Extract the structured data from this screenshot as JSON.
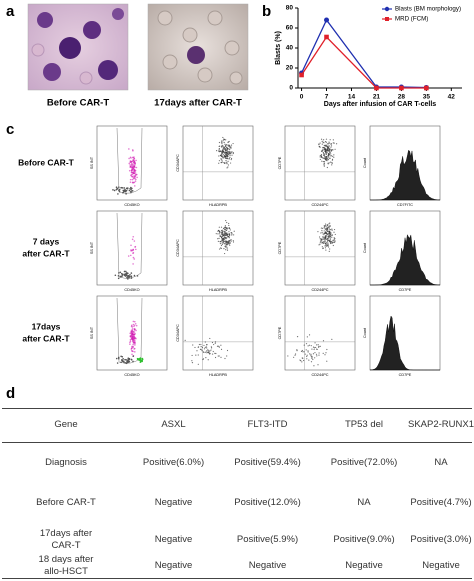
{
  "panel_a": {
    "letter": "a",
    "captions": [
      "Before CAR-T",
      "17days after CAR-T"
    ]
  },
  "chart_data": {
    "type": "line",
    "letter": "b",
    "xlabel": "Days after infusion of CAR T-cells",
    "ylabel": "Blasts (%)",
    "x": [
      0,
      7,
      21,
      28,
      35
    ],
    "series": [
      {
        "name": "Blasts (BM morphology)",
        "color": "#1f2fb0",
        "marker": "circle",
        "values": [
          15,
          68,
          1,
          1,
          0.5
        ]
      },
      {
        "name": "MRD (FCM)",
        "color": "#e0202a",
        "marker": "square",
        "values": [
          13,
          51,
          0,
          0,
          0
        ]
      }
    ],
    "xlim": [
      -1,
      45
    ],
    "xticks": [
      0,
      7,
      14,
      21,
      28,
      35,
      42
    ],
    "ylim": [
      0,
      80
    ],
    "yticks": [
      0,
      20,
      40,
      60,
      80
    ],
    "legend": "upper right"
  },
  "panel_c": {
    "letter": "c",
    "rows": [
      {
        "label": [
          "Before CAR-T"
        ],
        "plots": [
          {
            "x": "CD45KO",
            "y": "SS INT"
          },
          {
            "x": "HLADRPB",
            "y": "CD34APC"
          },
          {
            "x": "CD244PC",
            "y": "CD7PE"
          },
          {
            "x": "CD7FITC",
            "y": "Count"
          }
        ]
      },
      {
        "label": [
          "7 days",
          "after CAR-T"
        ],
        "plots": [
          {
            "x": "CD45KO",
            "y": "SS INT"
          },
          {
            "x": "HLADRPB",
            "y": "CD34APC"
          },
          {
            "x": "CD244PC",
            "y": "CD7PE"
          },
          {
            "x": "CD7PE",
            "y": "Count"
          }
        ]
      },
      {
        "label": [
          "17days",
          "after CAR-T"
        ],
        "plots": [
          {
            "x": "CD45KO",
            "y": "SS INT"
          },
          {
            "x": "HLADRPB",
            "y": "CD34APC"
          },
          {
            "x": "CD244PC",
            "y": "CD7PE"
          },
          {
            "x": "CD7PE",
            "y": "Count"
          }
        ]
      }
    ]
  },
  "table": {
    "letter": "d",
    "header": [
      "Gene",
      "ASXL",
      "FLT3-ITD",
      "TP53 del",
      "SKAP2-RUNX1"
    ],
    "rows": [
      [
        "Diagnosis",
        "Positive(6.0%)",
        "Positive(59.4%)",
        "Positive(72.0%)",
        "NA"
      ],
      [
        "Before CAR-T",
        "Negative",
        "Positive(12.0%)",
        "NA",
        "Positive(4.7%)"
      ],
      [
        "17days after CAR-T",
        "Negative",
        "Positive(5.9%)",
        "Positive(9.0%)",
        "Positive(3.0%)"
      ],
      [
        "18 days after allo-HSCT",
        "Negative",
        "Negative",
        "Negative",
        "Negative"
      ]
    ]
  }
}
